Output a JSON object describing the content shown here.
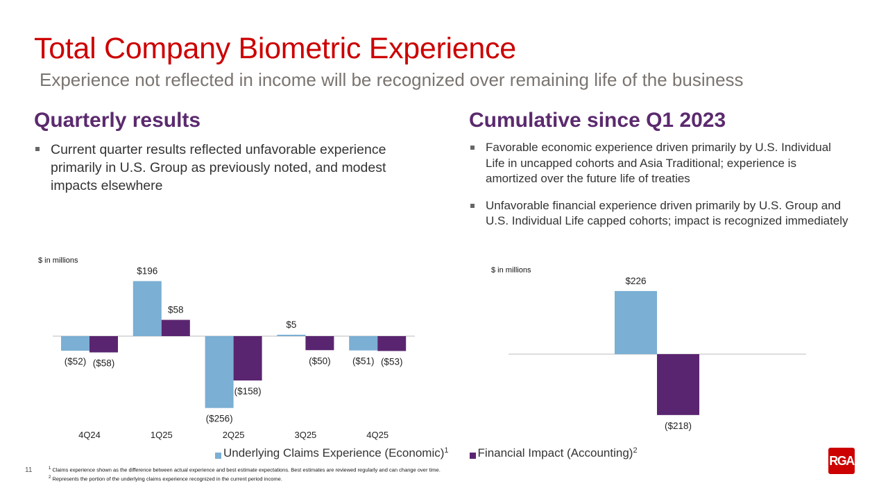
{
  "header": {
    "title": "Total Company Biometric Experience",
    "subtitle": "Experience not reflected in income will be recognized over remaining life of the business"
  },
  "left": {
    "heading": "Quarterly results",
    "bullets": [
      "Current quarter results reflected unfavorable experience primarily in U.S. Group as previously noted, and modest impacts elsewhere"
    ]
  },
  "right": {
    "heading": "Cumulative since Q1 2023",
    "bullets": [
      "Favorable economic experience driven primarily by U.S. Individual Life in uncapped cohorts and Asia Traditional; experience is amortized over the future life of treaties",
      "Unfavorable financial experience driven primarily by U.S. Group and U.S. Individual Life capped cohorts; impact is recognized immediately"
    ]
  },
  "chart_data": [
    {
      "type": "bar",
      "unit_label": "$ in millions",
      "categories": [
        "4Q24",
        "1Q25",
        "2Q25",
        "3Q25",
        "4Q25"
      ],
      "series": [
        {
          "name": "Underlying Claims Experience (Economic)",
          "values": [
            -52,
            196,
            -256,
            5,
            -51
          ],
          "labels": [
            "($52)",
            "$196",
            "($256)",
            "$5",
            "($51)"
          ],
          "color": "#7bafd4"
        },
        {
          "name": "Financial Impact (Accounting)",
          "values": [
            -58,
            58,
            -158,
            -50,
            -53
          ],
          "labels": [
            "($58)",
            "$58",
            "($158)",
            "($50)",
            "($53)"
          ],
          "color": "#5a2570"
        }
      ],
      "grid": false
    },
    {
      "type": "bar",
      "unit_label": "$ in millions",
      "categories": [
        ""
      ],
      "series": [
        {
          "name": "Underlying Claims Experience (Economic)",
          "values": [
            226
          ],
          "labels": [
            "$226"
          ],
          "color": "#7bafd4"
        },
        {
          "name": "Financial Impact (Accounting)",
          "values": [
            -218
          ],
          "labels": [
            "($218)"
          ],
          "color": "#5a2570"
        }
      ],
      "grid": false
    }
  ],
  "legend": {
    "items": [
      {
        "label": "Underlying Claims Experience (Economic)",
        "sup": "1"
      },
      {
        "label": "Financial Impact (Accounting)",
        "sup": "2"
      }
    ]
  },
  "footer": {
    "page_number": "11",
    "footnote1_mark": "1",
    "footnote1": "Claims experience shown as the difference between actual experience and best estimate expectations. Best estimates are reviewed regularly and can change over time.",
    "footnote2_mark": "2",
    "footnote2": "Represents the portion of the underlying claims experience recognized in the current period income.",
    "logo_text": "RGA"
  }
}
